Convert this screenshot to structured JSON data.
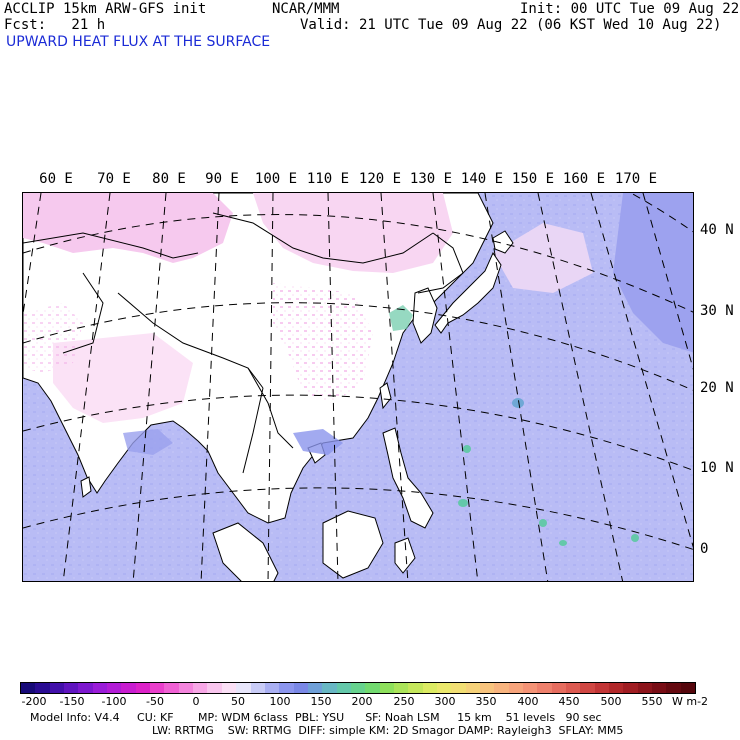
{
  "header": {
    "title": "ACCLIP 15km ARW-GFS init",
    "forecast": "Fcst:   21 h",
    "center": "NCAR/MMM",
    "init": "Init: 00 UTC Tue 09 Aug 22",
    "valid": "Valid: 21 UTC Tue 09 Aug 22 (06 KST Wed 10 Aug 22)",
    "field": "UPWARD HEAT FLUX AT THE SURFACE"
  },
  "map": {
    "lon_labels": [
      "60 E",
      "70 E",
      "80 E",
      "90 E",
      "100 E",
      "110 E",
      "120 E",
      "130 E",
      "140 E",
      "150 E",
      "160 E",
      "170 E"
    ],
    "lat_labels": [
      "40 N",
      "30 N",
      "20 N",
      "10 N",
      "0"
    ],
    "land_color": "#ffffff",
    "ocean_color": "#b9bcf5",
    "dry_land_color": "#f6c9ee",
    "grid_style": "dashed"
  },
  "colorbar": {
    "ticks": [
      "-200",
      "-150",
      "-100",
      "-50",
      "0",
      "50",
      "100",
      "150",
      "200",
      "250",
      "300",
      "350",
      "400",
      "450",
      "500",
      "550"
    ],
    "unit": "W m-2",
    "colors": [
      "#170a78",
      "#2a0c93",
      "#4210aa",
      "#5f14bf",
      "#7d18cf",
      "#9a1cd8",
      "#b21cd6",
      "#c81dd0",
      "#dc22c8",
      "#ea3fcc",
      "#f061d4",
      "#f485dd",
      "#f7a7e6",
      "#f9c6ee",
      "#fbe0f6",
      "#e8e6fb",
      "#c9ccf7",
      "#aab0f3",
      "#8c96ee",
      "#7a88e6",
      "#6fa0d8",
      "#68b7c4",
      "#64c8aa",
      "#66d28e",
      "#72da70",
      "#8ee05c",
      "#abe45a",
      "#c5e75c",
      "#dceb63",
      "#ebe86c",
      "#f2df74",
      "#f6d27a",
      "#f8c47e",
      "#f8b47f",
      "#f7a47c",
      "#f49376",
      "#ee806c",
      "#e66d5f",
      "#dc5a51",
      "#d04743",
      "#c23536",
      "#b2282a",
      "#a01d22",
      "#8c141b",
      "#780d15",
      "#650910",
      "#55060c"
    ]
  },
  "footer": {
    "line1": "Model Info: V4.4     CU: KF       MP: WDM 6class  PBL: YSU      SF: Noah LSM     15 km    51 levels   90 sec",
    "line2": "LW: RRTMG    SW: RRTMG  DIFF: simple KM: 2D Smagor DAMP: Rayleigh3  SFLAY: MM5"
  }
}
